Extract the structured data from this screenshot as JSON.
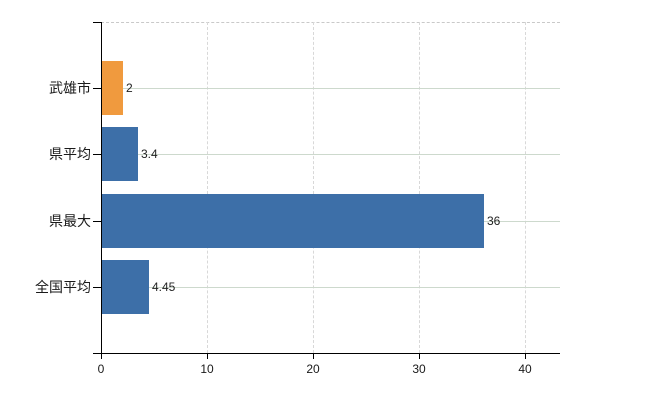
{
  "chart_data": {
    "type": "bar",
    "orientation": "horizontal",
    "categories": [
      "武雄市",
      "県平均",
      "県最大",
      "全国平均"
    ],
    "values": [
      2,
      3.4,
      36,
      4.45
    ],
    "value_labels": [
      "2",
      "3.4",
      "36",
      "4.45"
    ],
    "bar_colors": [
      "#F09A3E",
      "#3D6FA8",
      "#3D6FA8",
      "#3D6FA8"
    ],
    "xlim": [
      0,
      43.3
    ],
    "xticks": [
      0,
      10,
      20,
      30,
      40
    ],
    "xtick_labels": [
      "0",
      "10",
      "20",
      "30",
      "40"
    ],
    "grid": {
      "vertical_style": "dashed",
      "vertical_color": "#d8d8d8",
      "horizontal_style": "solid",
      "horizontal_color": "#cdd9cd",
      "top_border_style": "dashed",
      "top_border_color": "#c9c9c9"
    },
    "legend": "none",
    "axis_color": "#000000",
    "background_color": "#ffffff",
    "accent_orange": "#F09A3E",
    "accent_blue": "#3D6FA8"
  }
}
